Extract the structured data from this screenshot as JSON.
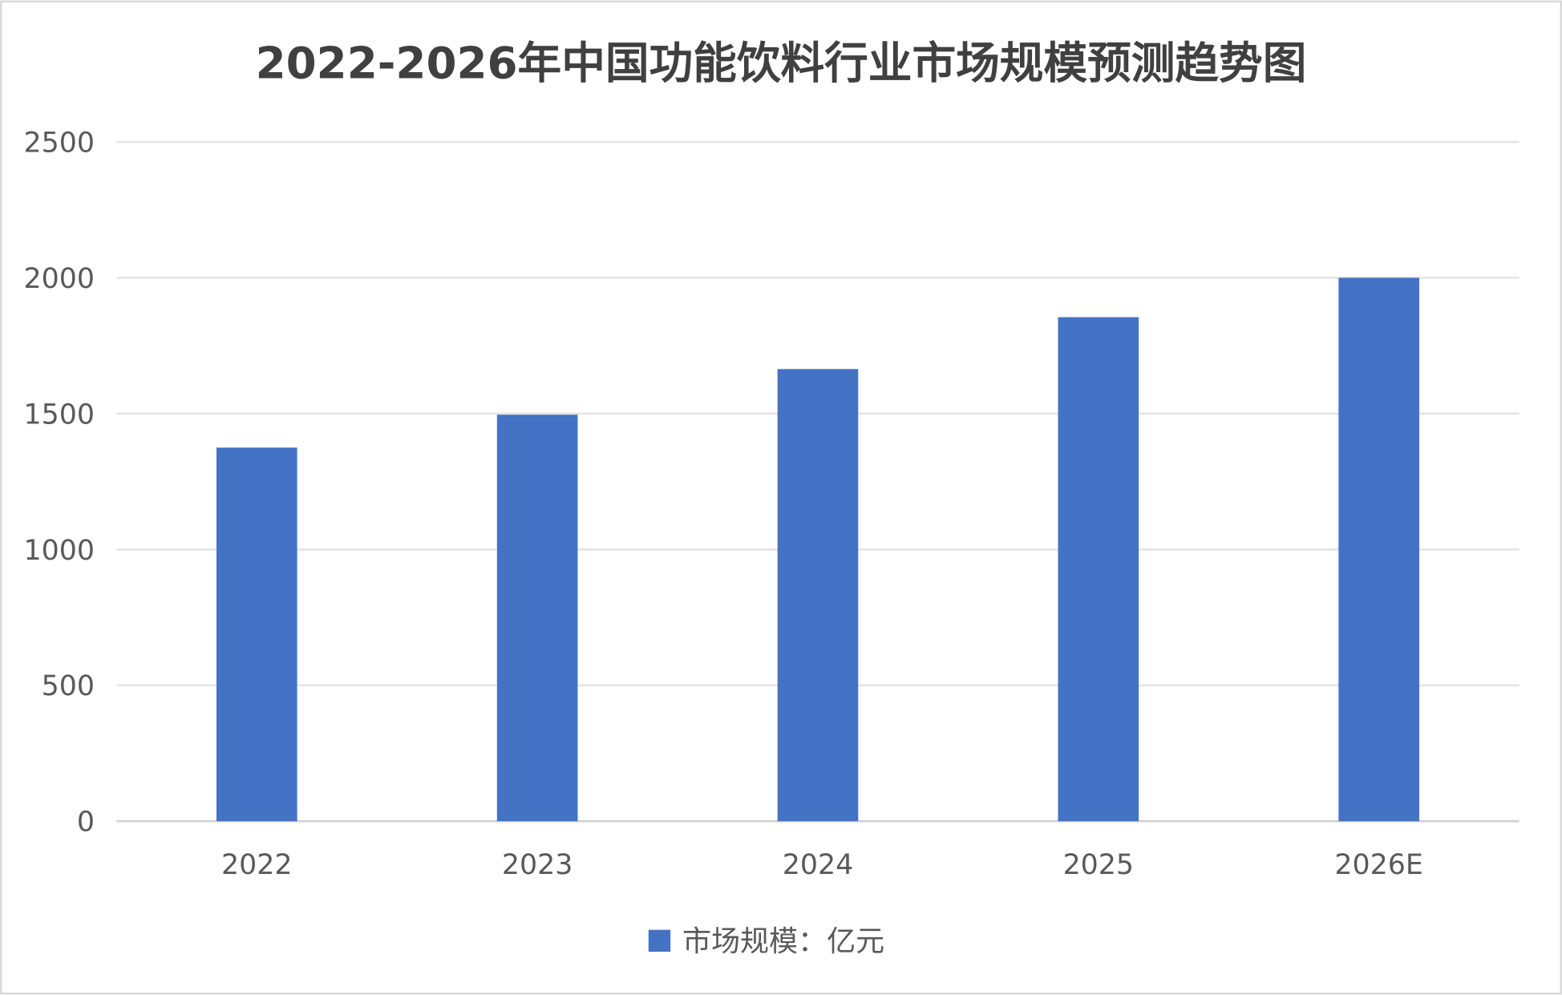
{
  "chart_data": {
    "type": "bar",
    "title": "2022-2026年中国功能饮料行业市场规模预测趋势图",
    "categories": [
      "2022",
      "2023",
      "2024",
      "2025",
      "2026E"
    ],
    "series": [
      {
        "name": "市场规模：亿元",
        "values": [
          1375,
          1496,
          1664,
          1855,
          2000
        ],
        "color": "#4472C4"
      }
    ],
    "yticks": [
      "0",
      "500",
      "1000",
      "1500",
      "2000",
      "2500"
    ],
    "ylim": [
      0,
      2500
    ],
    "xlabel": "",
    "ylabel": "",
    "grid": true,
    "legend": "bottom"
  }
}
